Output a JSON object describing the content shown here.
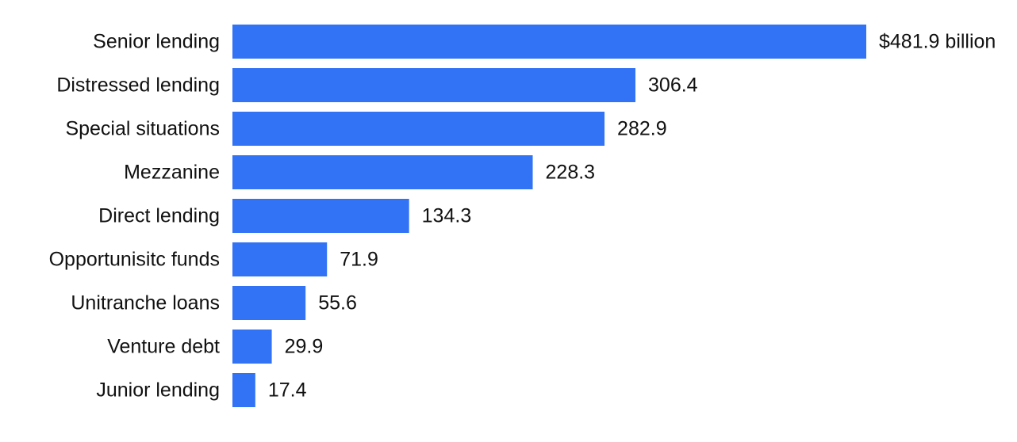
{
  "chart_data": {
    "type": "bar",
    "orientation": "horizontal",
    "categories": [
      "Senior lending",
      "Distressed lending",
      "Special situations",
      "Mezzanine",
      "Direct lending",
      "Opportunisitc funds",
      "Unitranche loans",
      "Venture debt",
      "Junior lending"
    ],
    "values": [
      481.9,
      306.4,
      282.9,
      228.3,
      134.3,
      71.9,
      55.6,
      29.9,
      17.4
    ],
    "value_labels": [
      "$481.9 billion",
      "306.4",
      "282.9",
      "228.3",
      "134.3",
      "71.9",
      "55.6",
      "29.9",
      "17.4"
    ],
    "title": "",
    "xlabel": "",
    "ylabel": "",
    "xlim": [
      0,
      481.9
    ],
    "grid": false,
    "legend": "none",
    "bar_color": "#3273f6"
  }
}
